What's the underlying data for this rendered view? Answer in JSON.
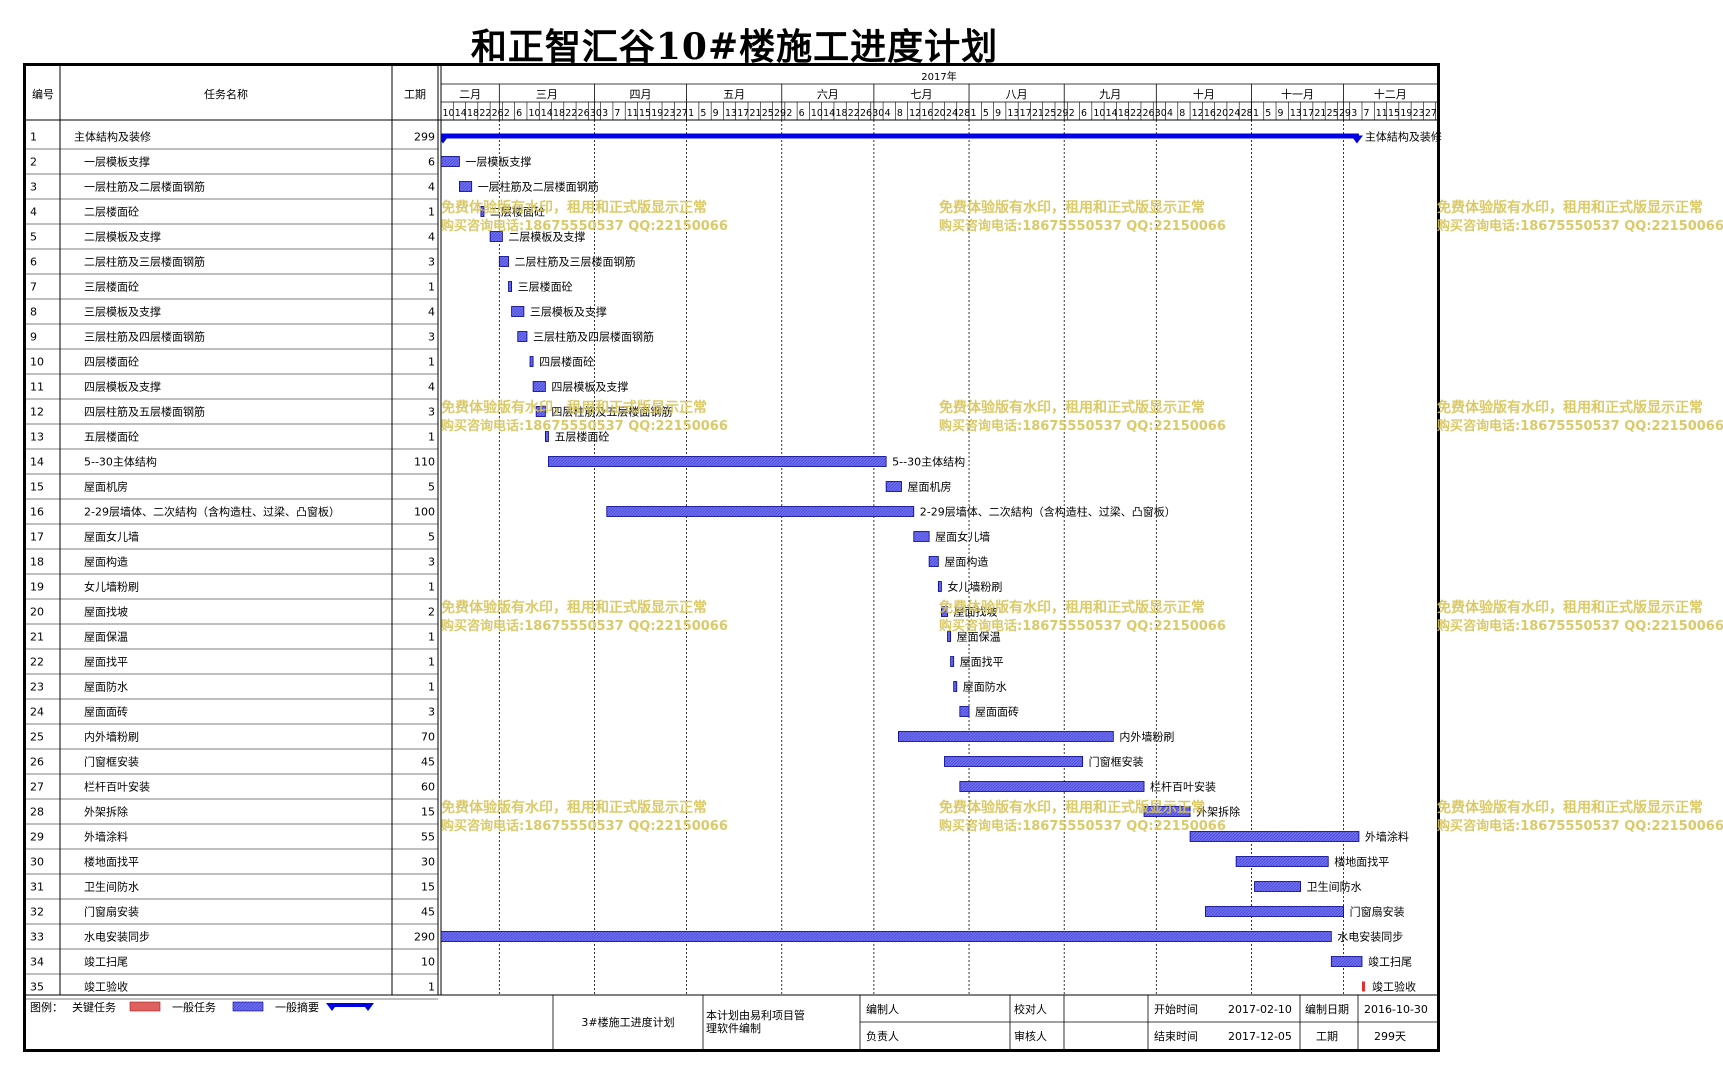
{
  "title": "和正智汇谷10#楼施工进度计划",
  "columns": {
    "id": "编号",
    "name": "任务名称",
    "duration": "工期"
  },
  "year_label": "2017年",
  "months": [
    "二月",
    "三月",
    "四月",
    "五月",
    "六月",
    "七月",
    "八月",
    "九月",
    "十月",
    "十一月",
    "十二月"
  ],
  "colors": {
    "task_bar": "#6f6ff0",
    "task_border": "#00008c",
    "summary": "#0000e6",
    "milestone": "#e03030",
    "critical": "#e06060",
    "watermark": "#d6c45a"
  },
  "chart_data": {
    "type": "gantt",
    "x_unit": "date",
    "xlim": [
      "2017-02-10",
      "2017-12-31"
    ],
    "tick_days": [
      [
        "10",
        "14",
        "18",
        "22",
        "26"
      ],
      [
        "2",
        "6",
        "10",
        "14",
        "18",
        "22",
        "26",
        "30"
      ],
      [
        "3",
        "7",
        "11",
        "15",
        "19",
        "23",
        "27"
      ],
      [
        "1",
        "5",
        "9",
        "13",
        "17",
        "21",
        "25",
        "29"
      ],
      [
        "2",
        "6",
        "10",
        "14",
        "18",
        "22",
        "26",
        "30"
      ],
      [
        "4",
        "8",
        "12",
        "16",
        "20",
        "24",
        "28"
      ],
      [
        "1",
        "5",
        "9",
        "13",
        "17",
        "21",
        "25",
        "29"
      ],
      [
        "2",
        "6",
        "10",
        "14",
        "18",
        "22",
        "26",
        "30"
      ],
      [
        "4",
        "8",
        "12",
        "16",
        "20",
        "24",
        "28"
      ],
      [
        "1",
        "5",
        "9",
        "13",
        "17",
        "21",
        "25",
        "29"
      ],
      [
        "3",
        "7",
        "11",
        "15",
        "19",
        "23",
        "27",
        "31"
      ]
    ],
    "tasks": [
      {
        "id": "1",
        "name": "主体結构及装修",
        "duration": "299",
        "start": "2017-02-10",
        "end": "2017-12-05",
        "kind": "summary"
      },
      {
        "id": "2",
        "name": "一层模板支撑",
        "duration": "6",
        "start": "2017-02-10",
        "end": "2017-02-15",
        "kind": "task"
      },
      {
        "id": "3",
        "name": "一层柱筋及二层楼面钢筋",
        "duration": "4",
        "start": "2017-02-16",
        "end": "2017-02-19",
        "kind": "task"
      },
      {
        "id": "4",
        "name": "二层楼面砼",
        "duration": "1",
        "start": "2017-02-23",
        "end": "2017-02-23",
        "kind": "task"
      },
      {
        "id": "5",
        "name": "二层模板及支撑",
        "duration": "4",
        "start": "2017-02-26",
        "end": "2017-03-01",
        "kind": "task"
      },
      {
        "id": "6",
        "name": "二层柱筋及三层楼面钢筋",
        "duration": "3",
        "start": "2017-03-01",
        "end": "2017-03-03",
        "kind": "task"
      },
      {
        "id": "7",
        "name": "三层楼面砼",
        "duration": "1",
        "start": "2017-03-04",
        "end": "2017-03-04",
        "kind": "task"
      },
      {
        "id": "8",
        "name": "三层模板及支撑",
        "duration": "4",
        "start": "2017-03-05",
        "end": "2017-03-08",
        "kind": "task"
      },
      {
        "id": "9",
        "name": "三层柱筋及四层楼面钢筋",
        "duration": "3",
        "start": "2017-03-07",
        "end": "2017-03-09",
        "kind": "task"
      },
      {
        "id": "10",
        "name": "四层楼面砼",
        "duration": "1",
        "start": "2017-03-11",
        "end": "2017-03-11",
        "kind": "task"
      },
      {
        "id": "11",
        "name": "四层模板及支撑",
        "duration": "4",
        "start": "2017-03-12",
        "end": "2017-03-15",
        "kind": "task"
      },
      {
        "id": "12",
        "name": "四层柱筋及五层楼面钢筋",
        "duration": "3",
        "start": "2017-03-13",
        "end": "2017-03-15",
        "kind": "task"
      },
      {
        "id": "13",
        "name": "五层楼面砼",
        "duration": "1",
        "start": "2017-03-16",
        "end": "2017-03-16",
        "kind": "task"
      },
      {
        "id": "14",
        "name": "5--30主体结构",
        "duration": "110",
        "start": "2017-03-17",
        "end": "2017-07-04",
        "kind": "task"
      },
      {
        "id": "15",
        "name": "屋面机房",
        "duration": "5",
        "start": "2017-07-05",
        "end": "2017-07-09",
        "kind": "task"
      },
      {
        "id": "16",
        "name": "2-29层墙体、二次結构（含构造柱、过梁、凸窗板）",
        "duration": "100",
        "start": "2017-04-05",
        "end": "2017-07-13",
        "kind": "task"
      },
      {
        "id": "17",
        "name": "屋面女儿墙",
        "duration": "5",
        "start": "2017-07-14",
        "end": "2017-07-18",
        "kind": "task"
      },
      {
        "id": "18",
        "name": "屋面构造",
        "duration": "3",
        "start": "2017-07-19",
        "end": "2017-07-21",
        "kind": "task"
      },
      {
        "id": "19",
        "name": "女儿墙粉刷",
        "duration": "1",
        "start": "2017-07-22",
        "end": "2017-07-22",
        "kind": "task"
      },
      {
        "id": "20",
        "name": "屋面找坡",
        "duration": "2",
        "start": "2017-07-23",
        "end": "2017-07-24",
        "kind": "task"
      },
      {
        "id": "21",
        "name": "屋面保温",
        "duration": "1",
        "start": "2017-07-25",
        "end": "2017-07-25",
        "kind": "task"
      },
      {
        "id": "22",
        "name": "屋面找平",
        "duration": "1",
        "start": "2017-07-26",
        "end": "2017-07-26",
        "kind": "task"
      },
      {
        "id": "23",
        "name": "屋面防水",
        "duration": "1",
        "start": "2017-07-27",
        "end": "2017-07-27",
        "kind": "task"
      },
      {
        "id": "24",
        "name": "屋面面砖",
        "duration": "3",
        "start": "2017-07-29",
        "end": "2017-07-31",
        "kind": "task"
      },
      {
        "id": "25",
        "name": "内外墙粉刷",
        "duration": "70",
        "start": "2017-07-09",
        "end": "2017-09-16",
        "kind": "task"
      },
      {
        "id": "26",
        "name": "门窗框安装",
        "duration": "45",
        "start": "2017-07-24",
        "end": "2017-09-06",
        "kind": "task"
      },
      {
        "id": "27",
        "name": "栏杆百叶安装",
        "duration": "60",
        "start": "2017-07-29",
        "end": "2017-09-26",
        "kind": "task"
      },
      {
        "id": "28",
        "name": "外架拆除",
        "duration": "15",
        "start": "2017-09-27",
        "end": "2017-10-11",
        "kind": "task"
      },
      {
        "id": "29",
        "name": "外墙涂料",
        "duration": "55",
        "start": "2017-10-12",
        "end": "2017-12-05",
        "kind": "task"
      },
      {
        "id": "30",
        "name": "楼地面找平",
        "duration": "30",
        "start": "2017-10-27",
        "end": "2017-11-25",
        "kind": "task"
      },
      {
        "id": "31",
        "name": "卫生间防水",
        "duration": "15",
        "start": "2017-11-02",
        "end": "2017-11-16",
        "kind": "task"
      },
      {
        "id": "32",
        "name": "门窗扇安装",
        "duration": "45",
        "start": "2017-10-17",
        "end": "2017-11-30",
        "kind": "task"
      },
      {
        "id": "33",
        "name": "水电安装同步",
        "duration": "290",
        "start": "2017-02-10",
        "end": "2017-11-26",
        "kind": "task"
      },
      {
        "id": "34",
        "name": "竣工扫尾",
        "duration": "10",
        "start": "2017-11-27",
        "end": "2017-12-06",
        "kind": "task"
      },
      {
        "id": "35",
        "name": "竣工验收",
        "duration": "1",
        "start": "2017-12-07",
        "end": "2017-12-07",
        "kind": "milestone"
      }
    ]
  },
  "legend": {
    "label": "图例：",
    "critical": "关键任务",
    "normal": "一般任务",
    "summary": "一般摘要"
  },
  "footer": {
    "plan_name": "3#楼施工进度计划",
    "software": "本计划由易利项目管理软件编制",
    "compiler_label": "编制人",
    "reviewer_label": "校对人",
    "responsible_label": "负责人",
    "auditor_label": "审核人",
    "start_label": "开始时间",
    "start_value": "2017-02-10",
    "end_label": "结束时间",
    "end_value": "2017-12-05",
    "date_label": "编制日期",
    "date_value": "2016-10-30",
    "duration_label": "工期",
    "duration_value": "299天"
  },
  "watermark": {
    "line1": "免费体验版有水印，租用和正式版显示正常",
    "line2": "购买咨询电话:18675550537 QQ:22150066"
  }
}
